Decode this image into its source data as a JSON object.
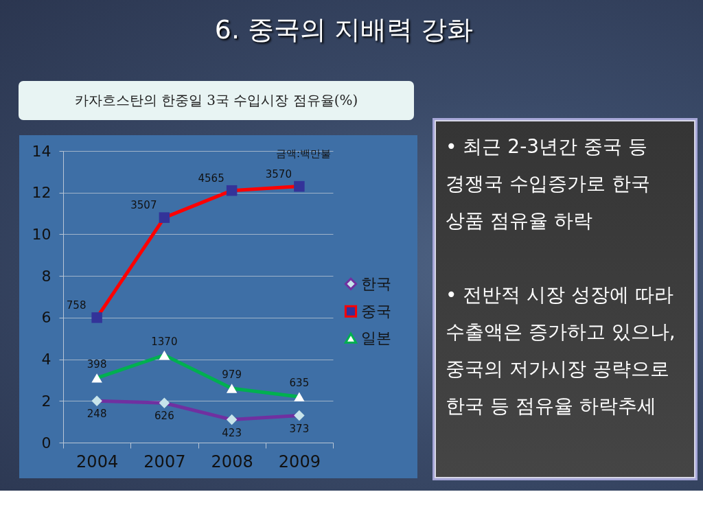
{
  "chart_data": {
    "type": "line",
    "title": "6. 중국의 지배력 강화",
    "subtitle": "카자흐스탄의 한중일 3국 수입시장 점유율(%)",
    "categories": [
      "2004",
      "2007",
      "2008",
      "2009"
    ],
    "series": [
      {
        "name": "한국",
        "color": "#7030a0",
        "colors": [
          "#c8e4ea",
          "#c8e4ea",
          "#c8e4ea",
          "#c8e4ea"
        ],
        "marker": "diamond",
        "values": [
          2.0,
          1.9,
          1.1,
          1.3
        ]
      },
      {
        "name": "중국",
        "color": "#ff0000",
        "colors": [
          "#333399",
          "#333399",
          "#333399",
          "#333399"
        ],
        "marker": "square",
        "values": [
          6.0,
          10.8,
          12.1,
          12.3
        ]
      },
      {
        "name": "일본",
        "color": "#00b050",
        "colors": [
          "#ffffff",
          "#ffffff",
          "#ffffff",
          "#ffffff"
        ],
        "marker": "triangle",
        "values": [
          3.1,
          4.2,
          2.6,
          2.2
        ]
      }
    ],
    "ylim": [
      0,
      14
    ],
    "yticks": [
      0,
      2,
      4,
      6,
      8,
      10,
      12,
      14
    ],
    "grid": "y",
    "legend": "right",
    "line_style": "solid",
    "annotations": [
      "금액:백만불",
      "• 최근 2-3년간 중국 등 경쟁국 수입증가로 한국 상품 점유율 하락",
      "• 전반적 시장 성장에 따라 수출액은 증가하고 있으나, 중국의 저가시장 공략으로 한국 등 점유율 하락추세",
      {
        "text": "248",
        "x": "2004",
        "y": 2.0
      },
      {
        "text": "626",
        "x": "2007",
        "y": 1.9
      },
      {
        "text": "423",
        "x": "2008",
        "y": 1.1
      },
      {
        "text": "373",
        "x": "2009",
        "y": 1.3
      },
      {
        "text": "758",
        "x": "2004",
        "y": 6.0
      },
      {
        "text": "3507",
        "x": "2007",
        "y": 10.8
      },
      {
        "text": "4565",
        "x": "2008",
        "y": 12.1
      },
      {
        "text": "3570",
        "x": "2009",
        "y": 12.3
      },
      {
        "text": "398",
        "x": "2004",
        "y": 3.1
      },
      {
        "text": "1370",
        "x": "2007",
        "y": 4.2
      },
      {
        "text": "979",
        "x": "2008",
        "y": 2.6
      },
      {
        "text": "635",
        "x": "2009",
        "y": 2.2
      }
    ]
  }
}
